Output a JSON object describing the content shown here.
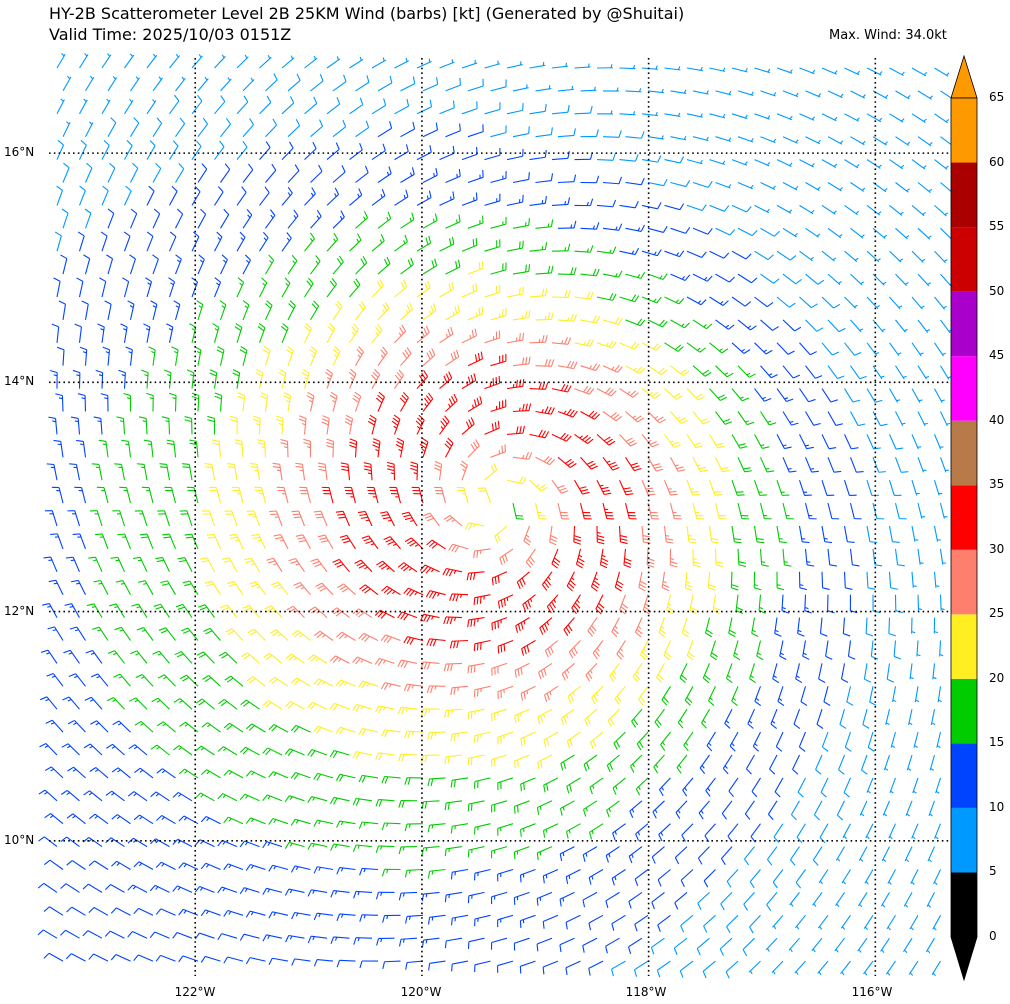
{
  "title_line1": "HY-2B Scatterometer Level 2B 25KM Wind (barbs) [kt] (Generated by @Shuitai)",
  "title_line2": "Valid Time: 2025/10/03 0151Z",
  "max_wind": "Max. Wind: 34.0kt",
  "lat_labels": [
    "16°N",
    "14°N",
    "12°N",
    "10°N"
  ],
  "lon_labels": [
    "122°W",
    "120°W",
    "118°W",
    "116°W"
  ],
  "map": {
    "lon_range": [
      -123.29,
      -115.35
    ],
    "lat_range": [
      8.82,
      16.83
    ],
    "grid_lons": [
      -122,
      -120,
      -118,
      -116
    ],
    "grid_lats": [
      10,
      12,
      14,
      16
    ],
    "cyclone_center": {
      "lon": -119.35,
      "lat": 12.95
    },
    "barb_color_note": "speed classes mapped to colorbar"
  },
  "colorbar": {
    "labels": [
      "0",
      "5",
      "10",
      "15",
      "20",
      "25",
      "30",
      "35",
      "40",
      "45",
      "50",
      "55",
      "60",
      "65"
    ],
    "colors": [
      "#000000",
      "#0099ff",
      "#0044ff",
      "#00cc00",
      "#ffee22",
      "#ff7f6e",
      "#ff0000",
      "#b97a4a",
      "#ff00ff",
      "#aa00cc",
      "#cc0000",
      "#aa0000",
      "#ff9900"
    ],
    "under_color": "#000000",
    "over_color": "#ff9900"
  }
}
